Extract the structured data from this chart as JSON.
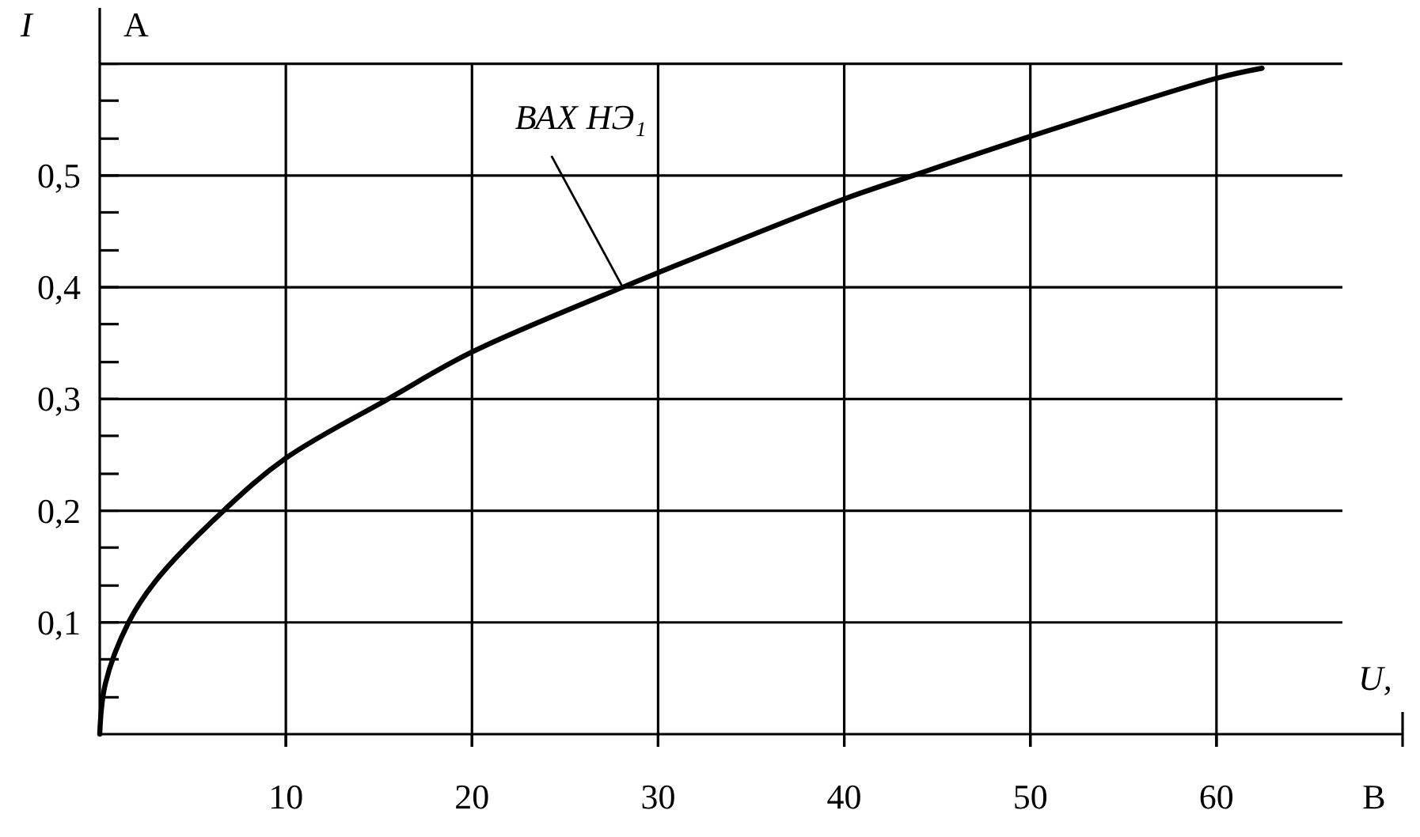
{
  "chart_data": {
    "type": "line",
    "xlabel": "U,",
    "ylabel": "I",
    "annotations": [
      "А",
      "В",
      {
        "text": "ВАХ НЭ₁",
        "x": 28.1,
        "y": 0.4
      }
    ],
    "x": [
      0,
      0.3,
      1.55,
      3,
      6.65,
      10,
      15.5,
      20,
      28.1,
      30,
      40,
      43.7,
      50,
      60,
      62.45
    ],
    "series": [
      {
        "color": "#000000",
        "values": [
          0,
          0.045,
          0.1,
          0.137,
          0.2,
          0.247,
          0.3,
          0.342,
          0.4,
          0.413,
          0.479,
          0.5,
          0.535,
          0.587,
          0.596
        ]
      }
    ],
    "xlim": [
      0,
      70
    ],
    "ylim": [
      0,
      0.65
    ],
    "xticks": [
      10,
      20,
      30,
      40,
      50,
      60
    ],
    "yticks": [
      {
        "value": 0.033,
        "label": null
      },
      {
        "value": 0.067,
        "label": null
      },
      {
        "value": 0.1,
        "label": "0,1"
      },
      {
        "value": 0.133,
        "label": null
      },
      {
        "value": 0.167,
        "label": null
      },
      {
        "value": 0.2,
        "label": "0,2"
      },
      {
        "value": 0.233,
        "label": null
      },
      {
        "value": 0.267,
        "label": null
      },
      {
        "value": 0.3,
        "label": "0,3"
      },
      {
        "value": 0.333,
        "label": null
      },
      {
        "value": 0.367,
        "label": null
      },
      {
        "value": 0.4,
        "label": "0,4"
      },
      {
        "value": 0.433,
        "label": null
      },
      {
        "value": 0.467,
        "label": null
      },
      {
        "value": 0.5,
        "label": "0,5"
      },
      {
        "value": 0.533,
        "label": null
      },
      {
        "value": 0.567,
        "label": null
      },
      {
        "value": 0.6,
        "label": null
      }
    ],
    "grid": true,
    "line_style": "solid",
    "marker": "none"
  }
}
